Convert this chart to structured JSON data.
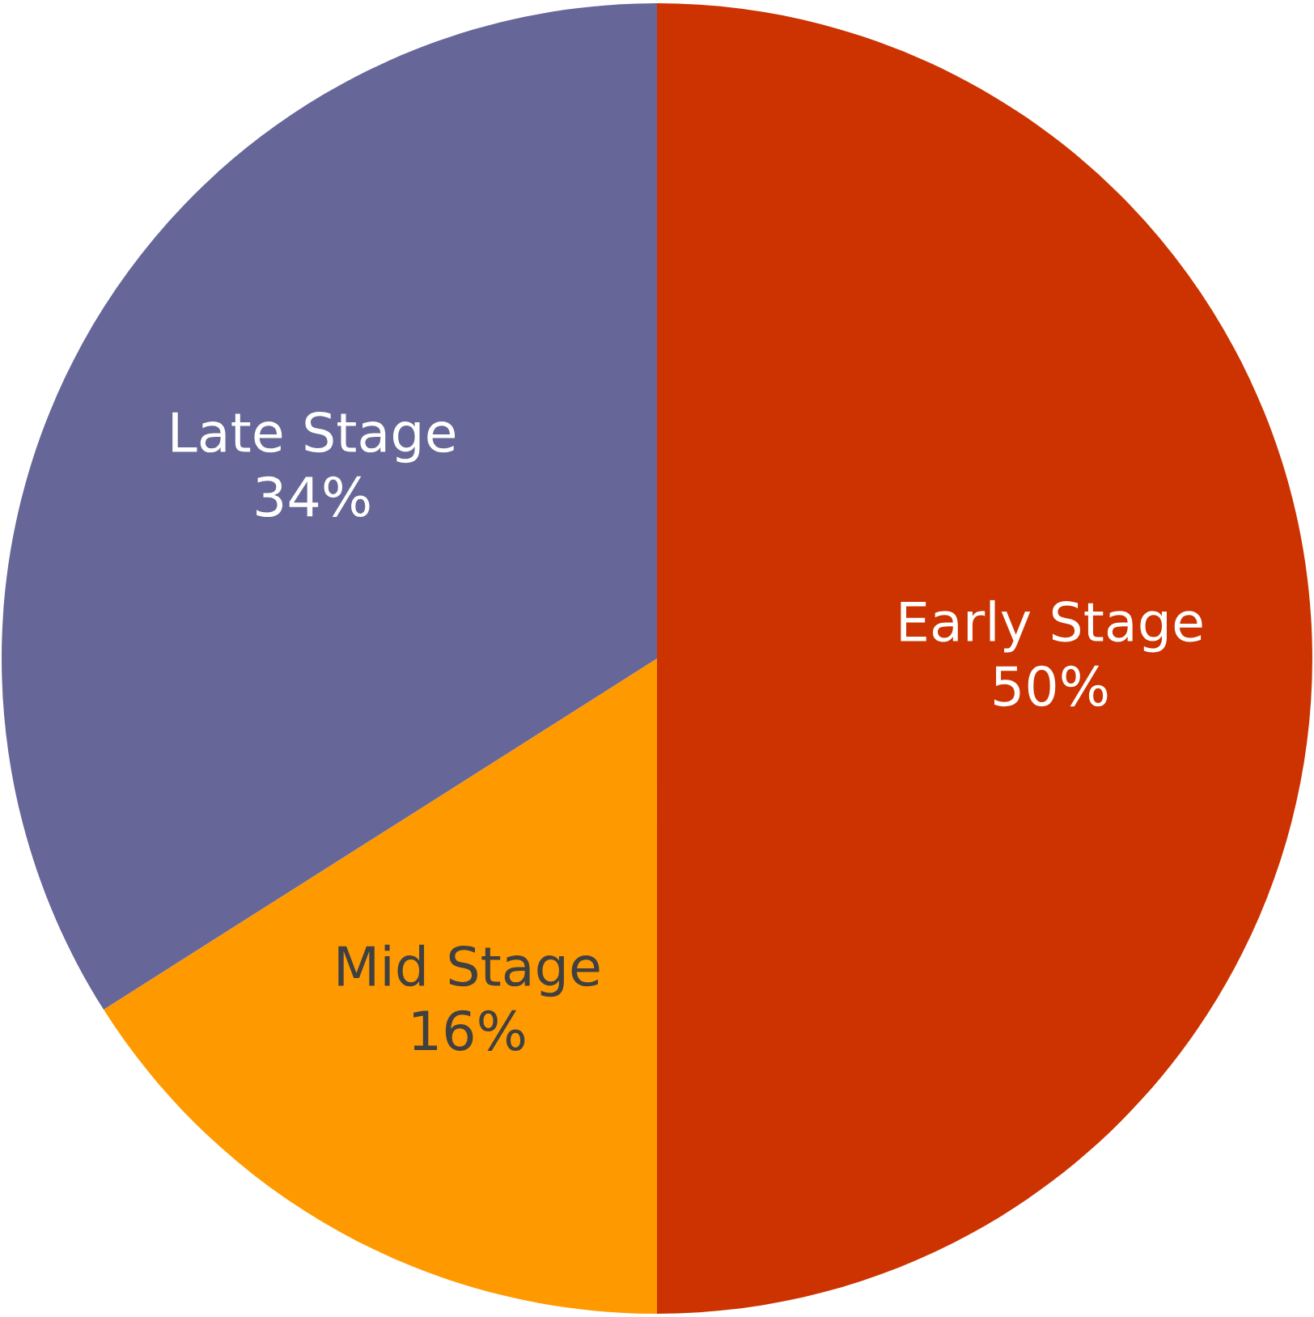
{
  "chart_data": {
    "type": "pie",
    "categories": [
      "Early Stage",
      "Mid Stage",
      "Late Stage"
    ],
    "values": [
      50,
      16,
      34
    ],
    "value_labels": [
      "50%",
      "16%",
      "34%"
    ],
    "colors": [
      "#cc3300",
      "#ff9900",
      "#666699"
    ],
    "legend": false
  }
}
